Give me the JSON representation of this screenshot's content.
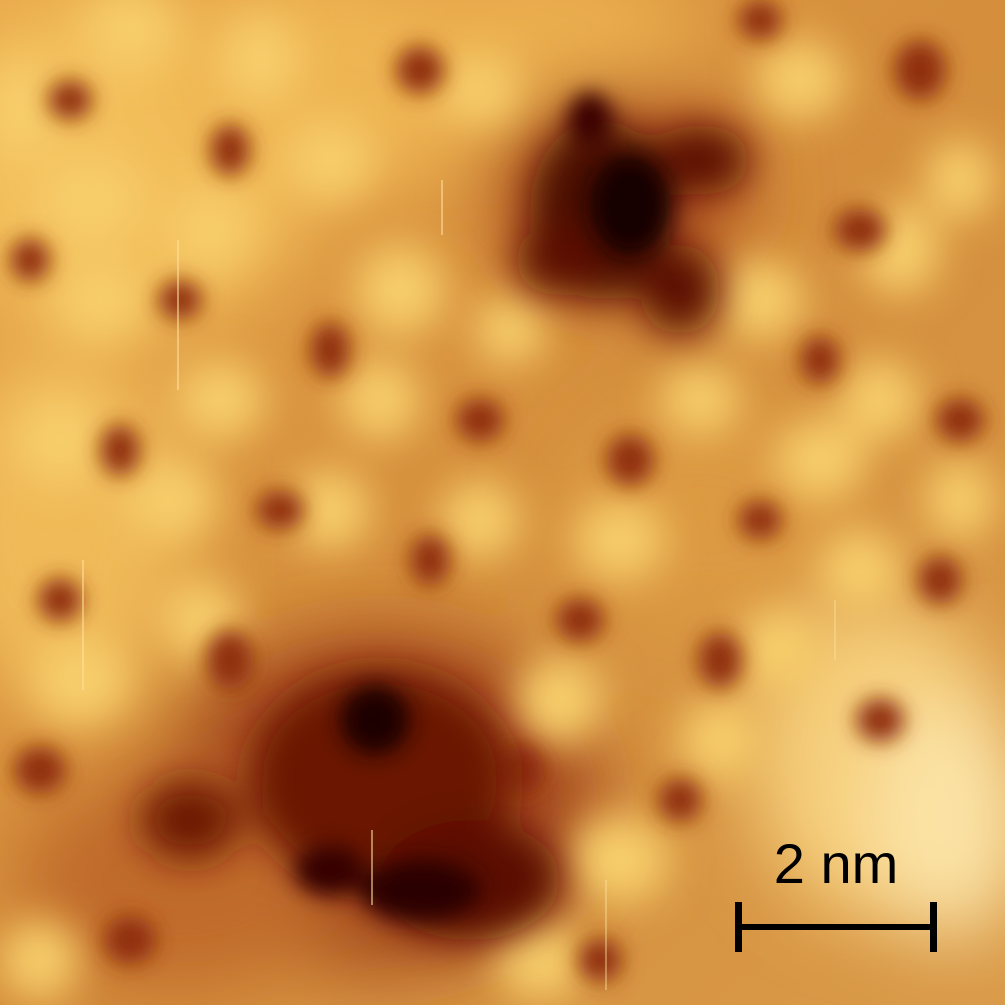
{
  "image": {
    "type": "scanning probe microscopy topograph",
    "colormap": [
      "#2a0000",
      "#7a1e06",
      "#b35a1c",
      "#d9913b",
      "#f2c15a",
      "#fbe7a6"
    ]
  },
  "scale_bar": {
    "label": "2 nm",
    "color": "#000000"
  }
}
